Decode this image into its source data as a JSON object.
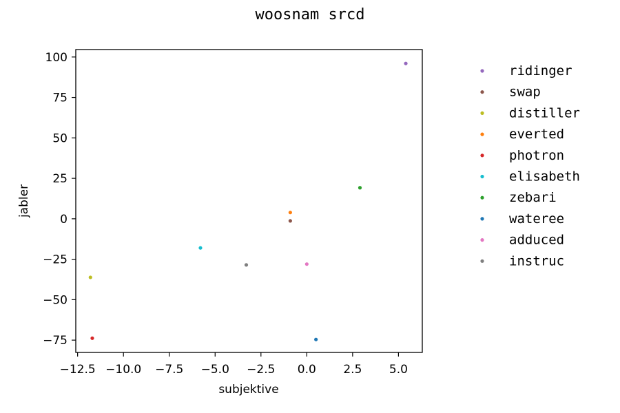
{
  "chart_data": {
    "type": "scatter",
    "title": "woosnam srcd",
    "xlabel": "subjektive",
    "ylabel": "jabler",
    "xlim": [
      -12.6,
      6.3
    ],
    "ylim": [
      -82.6,
      104.6
    ],
    "xticks": [
      -12.5,
      -10.0,
      -7.5,
      -5.0,
      -2.5,
      0.0,
      2.5,
      5.0
    ],
    "xtick_labels": [
      "−12.5",
      "−10.0",
      "−7.5",
      "−5.0",
      "−2.5",
      "0.0",
      "2.5",
      "5.0"
    ],
    "yticks": [
      100,
      75,
      50,
      25,
      0,
      -25,
      -50,
      -75
    ],
    "ytick_labels": [
      "100",
      "75",
      "50",
      "25",
      "0",
      "−25",
      "−50",
      "−75"
    ],
    "grid": false,
    "legend_position": "outside right",
    "series": [
      {
        "name": "ridinger",
        "color": "#9467bd",
        "x": [
          5.4
        ],
        "y": [
          96.0
        ]
      },
      {
        "name": "swap",
        "color": "#8c564b",
        "x": [
          -0.9
        ],
        "y": [
          -1.3
        ]
      },
      {
        "name": "distiller",
        "color": "#bcbd22",
        "x": [
          -11.8
        ],
        "y": [
          -36.2
        ]
      },
      {
        "name": "everted",
        "color": "#ff7f0e",
        "x": [
          -0.9
        ],
        "y": [
          3.9
        ]
      },
      {
        "name": "photron",
        "color": "#d62728",
        "x": [
          -11.7
        ],
        "y": [
          -73.8
        ]
      },
      {
        "name": "elisabeth",
        "color": "#17becf",
        "x": [
          -5.8
        ],
        "y": [
          -18.0
        ]
      },
      {
        "name": "zebari",
        "color": "#2ca02c",
        "x": [
          2.9
        ],
        "y": [
          19.2
        ]
      },
      {
        "name": "wateree",
        "color": "#1f77b4",
        "x": [
          0.5
        ],
        "y": [
          -74.6
        ]
      },
      {
        "name": "adduced",
        "color": "#e377c2",
        "x": [
          0.0
        ],
        "y": [
          -28.0
        ]
      },
      {
        "name": "instruc",
        "color": "#7f7f7f",
        "x": [
          -3.3
        ],
        "y": [
          -28.5
        ]
      }
    ]
  }
}
